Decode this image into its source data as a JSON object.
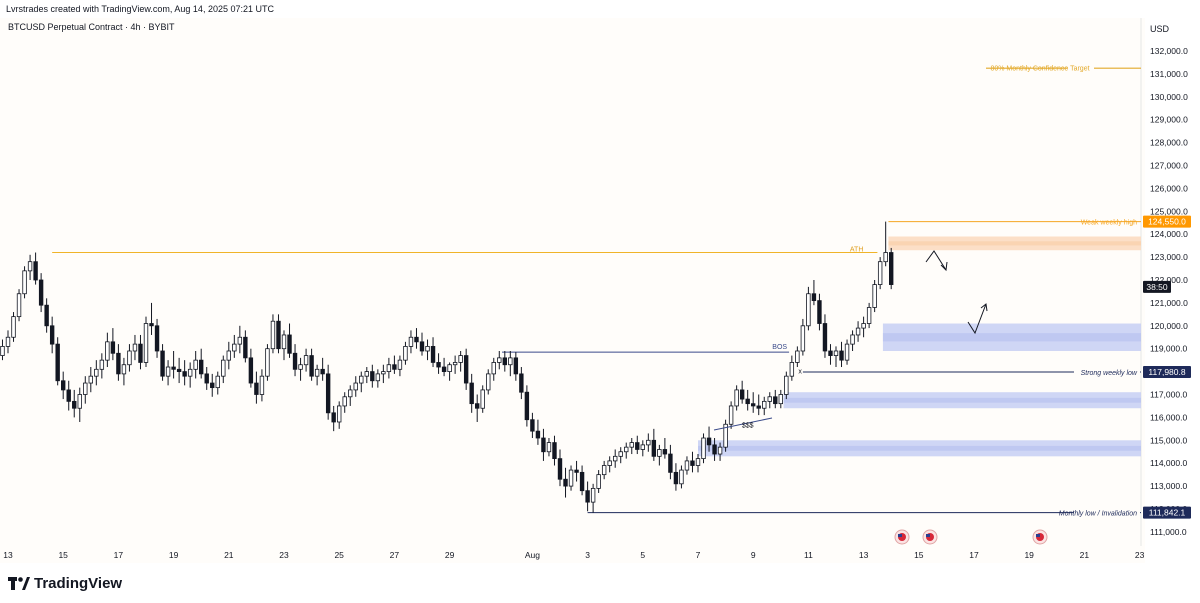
{
  "header": {
    "credit": "Lvrstrades created with TradingView.com, Aug 14, 2025 07:21 UTC"
  },
  "chart_data": {
    "type": "candlestick",
    "symbol_label": "BTCUSD Perpetual Contract · 4h · BYBIT",
    "currency_label": "USD",
    "ylim": [
      110500,
      132800
    ],
    "y_ticks": [
      "132,000.0",
      "131,000.0",
      "130,000.0",
      "129,000.0",
      "128,000.0",
      "127,000.0",
      "126,000.0",
      "125,000.0",
      "124,000.0",
      "123,000.0",
      "122,000.0",
      "121,000.0",
      "120,000.0",
      "119,000.0",
      "118,000.0",
      "117,000.0",
      "116,000.0",
      "115,000.0",
      "114,000.0",
      "113,000.0",
      "112,000.0",
      "111,000.0"
    ],
    "y_tick_values": [
      132000,
      131000,
      130000,
      129000,
      128000,
      127000,
      126000,
      125000,
      124000,
      123000,
      122000,
      121000,
      120000,
      119000,
      118000,
      117000,
      116000,
      115000,
      114000,
      113000,
      112000,
      111000
    ],
    "x_ticks": [
      "13",
      "15",
      "17",
      "19",
      "21",
      "23",
      "25",
      "27",
      "29",
      "Aug",
      "3",
      "5",
      "7",
      "9",
      "11",
      "13",
      "15",
      "17",
      "19",
      "21",
      "23"
    ],
    "x_tick_days": [
      13,
      15,
      17,
      19,
      21,
      23,
      25,
      27,
      29,
      32,
      34,
      36,
      38,
      40,
      42,
      44,
      46,
      48,
      50,
      52,
      54
    ],
    "x_axis_note": "x_tick_days counts days from Jul 1 (Aug 1 = 32)",
    "price_labels": [
      {
        "text": "124,550.0",
        "value": 124550,
        "color": "#ff9800"
      },
      {
        "text": "38:50",
        "value": 121700,
        "color": "#131722"
      },
      {
        "text": "117,980.8",
        "value": 117980.8,
        "color": "#1e2a5a"
      },
      {
        "text": "111,842.1",
        "value": 111842.1,
        "color": "#1e2a5a"
      }
    ],
    "levels": [
      {
        "label": "ATH",
        "value": 123200,
        "from_day": 14.6,
        "to_day": 44.5,
        "color": "#f0b429"
      },
      {
        "label": "BOS",
        "value": 118850,
        "from_day": 30.9,
        "to_day": 41.3,
        "color": "#3a4a8a"
      },
      {
        "label": "Strong weekly low",
        "value": 117980.8,
        "from_day": 41.8,
        "to_day": 57,
        "color": "#1e2a5a"
      },
      {
        "label": "Monthly low / Invalidation",
        "value": 111842.1,
        "from_day": 34,
        "to_day": 57,
        "color": "#1e2a5a"
      },
      {
        "label": "Weak weekly high",
        "value": 124550,
        "from_day": 44.9,
        "to_day": 57,
        "color": "#f5a623"
      },
      {
        "label": "80% Monthly Confidence Target",
        "value": 131250,
        "from_day": 51.4,
        "to_day": 55.2,
        "color": "#e3a92a"
      }
    ],
    "zones": [
      {
        "kind": "supply",
        "top": 123900,
        "bottom": 123300,
        "from_day": 44.9,
        "color": "#fbd9bd"
      },
      {
        "kind": "demand",
        "top": 120100,
        "bottom": 118900,
        "from_day": 44.7,
        "color": "#c7cff3"
      },
      {
        "kind": "demand",
        "top": 117100,
        "bottom": 116400,
        "from_day": 41.1,
        "color": "#c7cff3"
      },
      {
        "kind": "demand",
        "top": 115000,
        "bottom": 114300,
        "from_day": 38.0,
        "color": "#c7cff3"
      }
    ],
    "annotations": [
      {
        "text": "$$$",
        "day": 39.8,
        "value": 115700
      },
      {
        "text": "x",
        "day": 41.7,
        "value": 118050
      }
    ],
    "candles": [
      [
        12.0,
        117200,
        117900,
        117000,
        117500
      ],
      [
        12.2,
        117500,
        118100,
        117200,
        117800
      ],
      [
        12.4,
        117800,
        118500,
        117600,
        118200
      ],
      [
        12.6,
        118200,
        118900,
        118000,
        118700
      ],
      [
        12.8,
        118700,
        119400,
        118500,
        119100
      ],
      [
        13.0,
        119100,
        119800,
        118800,
        119500
      ],
      [
        13.2,
        119500,
        120600,
        119300,
        120400
      ],
      [
        13.4,
        120400,
        121600,
        120200,
        121400
      ],
      [
        13.6,
        121400,
        122600,
        121200,
        122400
      ],
      [
        13.8,
        122400,
        123100,
        122000,
        122800
      ],
      [
        14.0,
        122800,
        123200,
        121800,
        122000
      ],
      [
        14.2,
        122000,
        122300,
        120600,
        120900
      ],
      [
        14.4,
        120900,
        121200,
        119700,
        120000
      ],
      [
        14.6,
        120000,
        120400,
        118800,
        119200
      ],
      [
        14.8,
        119200,
        119500,
        117400,
        117600
      ],
      [
        15.0,
        117600,
        118000,
        116800,
        117200
      ],
      [
        15.2,
        117200,
        117600,
        116300,
        116700
      ],
      [
        15.4,
        116700,
        117200,
        116000,
        116400
      ],
      [
        15.6,
        116400,
        117300,
        115800,
        117000
      ],
      [
        15.8,
        117000,
        117800,
        116600,
        117500
      ],
      [
        16.0,
        117500,
        118200,
        117100,
        117800
      ],
      [
        16.2,
        117800,
        118500,
        117400,
        118100
      ],
      [
        16.4,
        118100,
        118800,
        117700,
        118500
      ],
      [
        16.6,
        118500,
        119700,
        118200,
        119300
      ],
      [
        16.8,
        119300,
        119900,
        118500,
        118800
      ],
      [
        17.0,
        118800,
        119200,
        117600,
        117900
      ],
      [
        17.2,
        117900,
        118600,
        117400,
        118300
      ],
      [
        17.4,
        118300,
        119200,
        118000,
        118900
      ],
      [
        17.6,
        118900,
        119600,
        118500,
        119200
      ],
      [
        17.8,
        119200,
        119600,
        118100,
        118400
      ],
      [
        18.0,
        118400,
        120400,
        118200,
        120100
      ],
      [
        18.2,
        120100,
        121000,
        119600,
        120000
      ],
      [
        18.4,
        120000,
        120300,
        118600,
        118900
      ],
      [
        18.6,
        118900,
        119200,
        117600,
        117800
      ],
      [
        18.8,
        117800,
        118500,
        117400,
        118200
      ],
      [
        19.0,
        118200,
        118900,
        117700,
        118100
      ],
      [
        19.2,
        118100,
        118600,
        117500,
        118000
      ],
      [
        19.4,
        118000,
        118500,
        117400,
        117800
      ],
      [
        19.6,
        117800,
        118400,
        117300,
        118100
      ],
      [
        19.8,
        118100,
        118900,
        117700,
        118500
      ],
      [
        20.0,
        118500,
        119000,
        117700,
        117900
      ],
      [
        20.2,
        117900,
        118200,
        117200,
        117500
      ],
      [
        20.4,
        117500,
        117900,
        116900,
        117300
      ],
      [
        20.6,
        117300,
        118000,
        117000,
        117800
      ],
      [
        20.8,
        117800,
        118700,
        117500,
        118500
      ],
      [
        21.0,
        118500,
        119300,
        118100,
        118900
      ],
      [
        21.2,
        118900,
        119600,
        118600,
        119200
      ],
      [
        21.4,
        119200,
        120000,
        118800,
        119500
      ],
      [
        21.6,
        119500,
        119800,
        118400,
        118600
      ],
      [
        21.8,
        118600,
        119000,
        117300,
        117500
      ],
      [
        22.0,
        117500,
        118000,
        116600,
        117000
      ],
      [
        22.2,
        117000,
        118100,
        116700,
        117800
      ],
      [
        22.4,
        117800,
        119200,
        117600,
        119000
      ],
      [
        22.6,
        119000,
        120500,
        118800,
        120200
      ],
      [
        22.8,
        120200,
        120500,
        118800,
        119000
      ],
      [
        23.0,
        119000,
        119800,
        118500,
        119600
      ],
      [
        23.2,
        119600,
        120100,
        118600,
        118800
      ],
      [
        23.4,
        118800,
        119200,
        117800,
        118100
      ],
      [
        23.6,
        118100,
        118600,
        117600,
        118300
      ],
      [
        23.8,
        118300,
        119000,
        118000,
        118700
      ],
      [
        24.0,
        118700,
        119000,
        117600,
        117800
      ],
      [
        24.2,
        117800,
        118300,
        117400,
        118100
      ],
      [
        24.4,
        118100,
        118600,
        117600,
        117900
      ],
      [
        24.6,
        117900,
        118300,
        115900,
        116200
      ],
      [
        24.8,
        116200,
        116500,
        115400,
        115800
      ],
      [
        25.0,
        115800,
        116700,
        115500,
        116500
      ],
      [
        25.2,
        116500,
        117100,
        116200,
        116900
      ],
      [
        25.4,
        116900,
        117400,
        116500,
        117200
      ],
      [
        25.6,
        117200,
        117800,
        116900,
        117500
      ],
      [
        25.8,
        117500,
        118000,
        117100,
        117800
      ],
      [
        26.0,
        117800,
        118200,
        117500,
        118000
      ],
      [
        26.2,
        118000,
        118300,
        117300,
        117600
      ],
      [
        26.4,
        117600,
        118100,
        117300,
        117900
      ],
      [
        26.6,
        117900,
        118300,
        117500,
        118000
      ],
      [
        26.8,
        118000,
        118600,
        117700,
        118300
      ],
      [
        27.0,
        118300,
        118700,
        117900,
        118100
      ],
      [
        27.2,
        118100,
        118700,
        117800,
        118500
      ],
      [
        27.4,
        118500,
        119300,
        118300,
        119100
      ],
      [
        27.6,
        119100,
        119800,
        118800,
        119500
      ],
      [
        27.8,
        119500,
        119900,
        119000,
        119300
      ],
      [
        28.0,
        119300,
        119700,
        118700,
        118900
      ],
      [
        28.2,
        118900,
        119400,
        118500,
        119100
      ],
      [
        28.4,
        119100,
        119500,
        118200,
        118400
      ],
      [
        28.6,
        118400,
        118800,
        117900,
        118200
      ],
      [
        28.8,
        118200,
        118600,
        117800,
        118000
      ],
      [
        29.0,
        118000,
        118400,
        117600,
        118300
      ],
      [
        29.2,
        118300,
        118700,
        117900,
        118400
      ],
      [
        29.4,
        118400,
        118900,
        118000,
        118700
      ],
      [
        29.6,
        118700,
        119000,
        117200,
        117500
      ],
      [
        29.8,
        117500,
        117900,
        116200,
        116600
      ],
      [
        30.0,
        116600,
        117000,
        115800,
        116400
      ],
      [
        30.2,
        116400,
        117400,
        116200,
        117200
      ],
      [
        30.4,
        117200,
        118100,
        117000,
        117900
      ],
      [
        30.6,
        117900,
        118600,
        117600,
        118400
      ],
      [
        30.8,
        118400,
        118900,
        118100,
        118600
      ],
      [
        31.0,
        118600,
        118900,
        118000,
        118300
      ],
      [
        31.2,
        118300,
        118900,
        117800,
        118600
      ],
      [
        31.4,
        118600,
        118850,
        117600,
        117900
      ],
      [
        31.6,
        117900,
        118200,
        116800,
        117100
      ],
      [
        31.8,
        117100,
        117400,
        115600,
        115900
      ],
      [
        32.0,
        115900,
        116200,
        115100,
        115400
      ],
      [
        32.2,
        115400,
        115900,
        114800,
        115100
      ],
      [
        32.4,
        115100,
        115500,
        114100,
        114500
      ],
      [
        32.6,
        114500,
        115100,
        114300,
        114900
      ],
      [
        32.8,
        114900,
        115200,
        113900,
        114200
      ],
      [
        33.0,
        114200,
        114600,
        113000,
        113300
      ],
      [
        33.2,
        113300,
        113800,
        112500,
        113000
      ],
      [
        33.4,
        113000,
        113900,
        112800,
        113700
      ],
      [
        33.6,
        113700,
        114100,
        113200,
        113600
      ],
      [
        33.8,
        113600,
        113900,
        112600,
        112800
      ],
      [
        34.0,
        112800,
        113200,
        111900,
        112300
      ],
      [
        34.2,
        112300,
        113100,
        111842,
        112900
      ],
      [
        34.4,
        112900,
        113700,
        112700,
        113500
      ],
      [
        34.6,
        113500,
        114100,
        113300,
        113900
      ],
      [
        34.8,
        113900,
        114300,
        113600,
        114100
      ],
      [
        35.0,
        114100,
        114600,
        113800,
        114300
      ],
      [
        35.2,
        114300,
        114700,
        114000,
        114500
      ],
      [
        35.4,
        114500,
        114900,
        114200,
        114700
      ],
      [
        35.6,
        114700,
        115100,
        114400,
        114900
      ],
      [
        35.8,
        114900,
        115200,
        114400,
        114600
      ],
      [
        36.0,
        114600,
        115000,
        114300,
        114800
      ],
      [
        36.2,
        114800,
        115300,
        114500,
        115000
      ],
      [
        36.4,
        115000,
        115500,
        114100,
        114300
      ],
      [
        36.6,
        114300,
        114800,
        113900,
        114600
      ],
      [
        36.8,
        114600,
        115100,
        114200,
        114400
      ],
      [
        37.0,
        114400,
        114800,
        113300,
        113600
      ],
      [
        37.2,
        113600,
        114000,
        112800,
        113100
      ],
      [
        37.4,
        113100,
        113900,
        112900,
        113700
      ],
      [
        37.6,
        113700,
        114300,
        113500,
        114100
      ],
      [
        37.8,
        114100,
        114500,
        113600,
        113900
      ],
      [
        38.0,
        113900,
        114400,
        113600,
        114200
      ],
      [
        38.2,
        114200,
        115300,
        114000,
        115100
      ],
      [
        38.4,
        115100,
        115600,
        114500,
        114800
      ],
      [
        38.6,
        114800,
        115100,
        114100,
        114400
      ],
      [
        38.8,
        114400,
        114900,
        114100,
        114700
      ],
      [
        39.0,
        114700,
        115900,
        114500,
        115700
      ],
      [
        39.2,
        115700,
        116700,
        115500,
        116500
      ],
      [
        39.4,
        116500,
        117400,
        116300,
        117200
      ],
      [
        39.6,
        117200,
        117600,
        116600,
        116800
      ],
      [
        39.8,
        116800,
        117200,
        116300,
        116600
      ],
      [
        40.0,
        116600,
        117100,
        116200,
        116500
      ],
      [
        40.2,
        116500,
        117000,
        116100,
        116400
      ],
      [
        40.4,
        116400,
        116900,
        116100,
        116700
      ],
      [
        40.6,
        116700,
        117100,
        116400,
        116900
      ],
      [
        40.8,
        116900,
        117200,
        116400,
        116600
      ],
      [
        41.0,
        116600,
        117200,
        116400,
        117000
      ],
      [
        41.2,
        117000,
        118000,
        116800,
        117800
      ],
      [
        41.4,
        117800,
        118700,
        117600,
        118400
      ],
      [
        41.6,
        118400,
        119100,
        118200,
        118900
      ],
      [
        41.8,
        118900,
        120300,
        118700,
        120000
      ],
      [
        42.0,
        120000,
        121700,
        119800,
        121400
      ],
      [
        42.2,
        121400,
        122000,
        120900,
        121100
      ],
      [
        42.4,
        121100,
        121400,
        119800,
        120100
      ],
      [
        42.6,
        120100,
        120500,
        118600,
        118900
      ],
      [
        42.8,
        118900,
        119200,
        118300,
        118700
      ],
      [
        43.0,
        118700,
        119100,
        118200,
        118900
      ],
      [
        43.2,
        118900,
        119300,
        118200,
        118500
      ],
      [
        43.4,
        118500,
        119400,
        118300,
        119200
      ],
      [
        43.6,
        119200,
        119800,
        118900,
        119600
      ],
      [
        43.8,
        119600,
        120200,
        119300,
        119900
      ],
      [
        44.0,
        119900,
        120400,
        119500,
        120100
      ],
      [
        44.2,
        120100,
        121000,
        119900,
        120800
      ],
      [
        44.4,
        120800,
        122000,
        120600,
        121800
      ],
      [
        44.6,
        121800,
        123000,
        121600,
        122800
      ],
      [
        44.8,
        122800,
        124550,
        122600,
        123200
      ],
      [
        45.0,
        123200,
        123400,
        121600,
        121800
      ]
    ]
  }
}
